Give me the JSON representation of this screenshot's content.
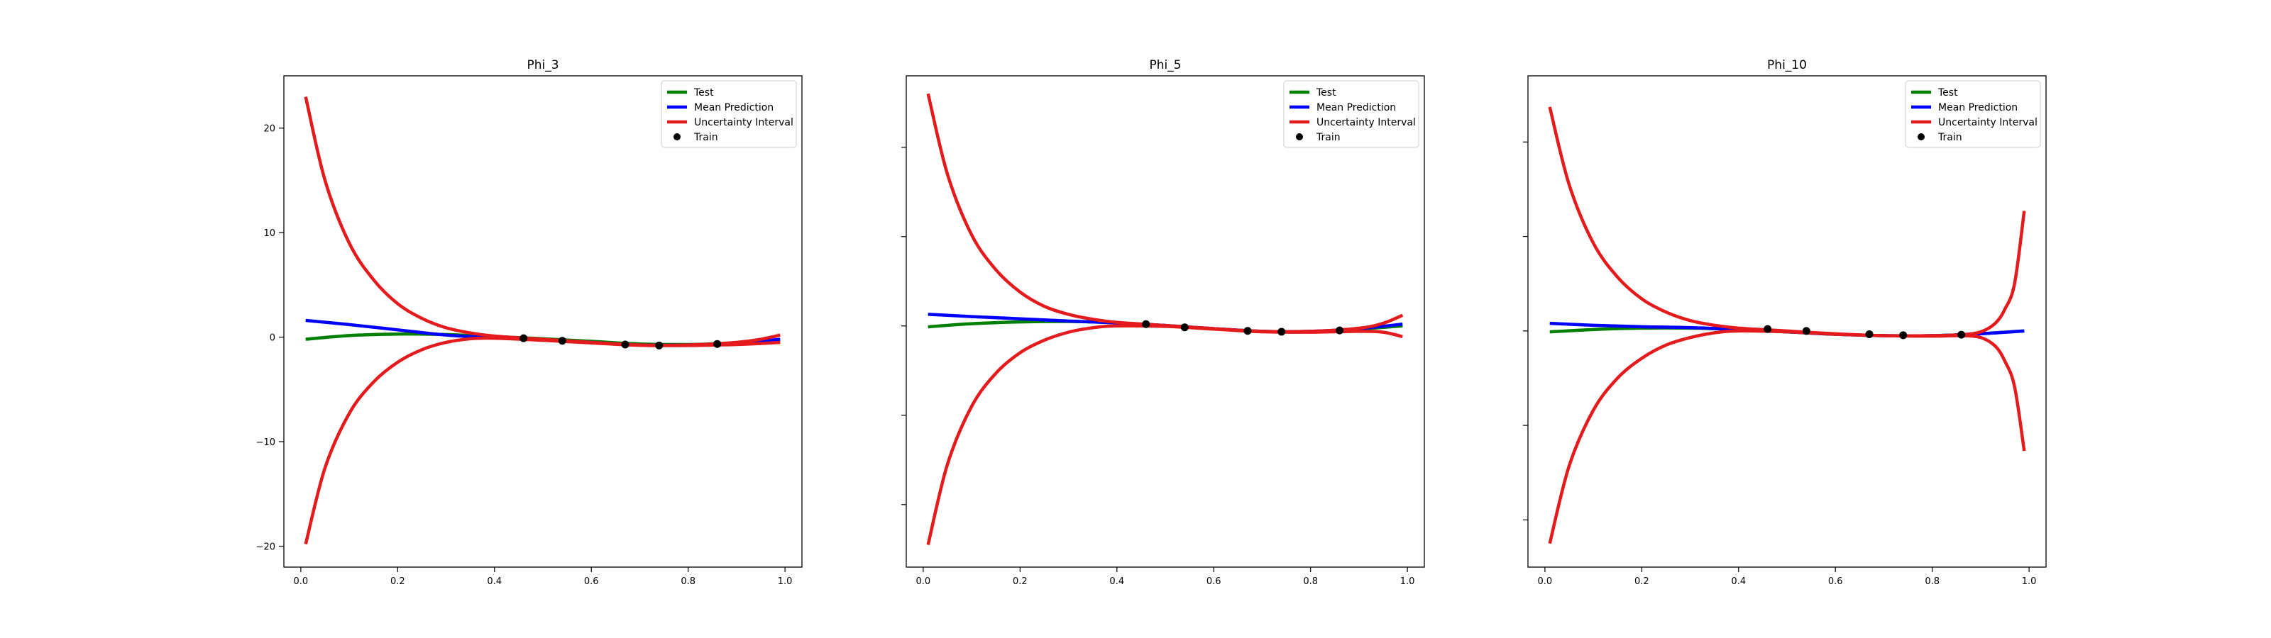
{
  "chart_data": [
    {
      "type": "line",
      "title": "Phi_3",
      "xlabel": "",
      "ylabel": "",
      "xlim": [
        -0.035,
        1.035
      ],
      "ylim": [
        -22,
        25
      ],
      "x_ticks": [
        0.0,
        0.2,
        0.4,
        0.6,
        0.8,
        1.0
      ],
      "x_tick_labels": [
        "0.0",
        "0.2",
        "0.4",
        "0.6",
        "0.8",
        "1.0"
      ],
      "y_ticks": [
        -20,
        -10,
        0,
        10,
        20
      ],
      "y_tick_labels": [
        "−20",
        "−10",
        "0",
        "10",
        "20"
      ],
      "legend_position": "top-right",
      "legend": [
        "Test",
        "Mean Prediction",
        "Uncertainty Interval",
        "Train"
      ],
      "series": [
        {
          "name": "Test",
          "color": "#008000",
          "points": [
            [
              0.01,
              -0.2
            ],
            [
              0.1,
              0.15
            ],
            [
              0.2,
              0.3
            ],
            [
              0.3,
              0.25
            ],
            [
              0.4,
              0.05
            ],
            [
              0.5,
              -0.15
            ],
            [
              0.6,
              -0.4
            ],
            [
              0.7,
              -0.65
            ],
            [
              0.8,
              -0.7
            ],
            [
              0.9,
              -0.55
            ],
            [
              0.99,
              -0.35
            ]
          ]
        },
        {
          "name": "Mean Prediction",
          "color": "#0000ff",
          "points": [
            [
              0.01,
              1.6
            ],
            [
              0.1,
              1.2
            ],
            [
              0.2,
              0.7
            ],
            [
              0.3,
              0.2
            ],
            [
              0.4,
              -0.05
            ],
            [
              0.5,
              -0.25
            ],
            [
              0.6,
              -0.5
            ],
            [
              0.7,
              -0.75
            ],
            [
              0.8,
              -0.75
            ],
            [
              0.9,
              -0.55
            ],
            [
              0.99,
              -0.2
            ]
          ]
        },
        {
          "name": "Uncertainty Interval",
          "color": "#e41a1c",
          "points": [
            [
              0.01,
              23.0
            ],
            [
              0.05,
              15.0
            ],
            [
              0.1,
              9.0
            ],
            [
              0.15,
              5.5
            ],
            [
              0.2,
              3.2
            ],
            [
              0.25,
              1.8
            ],
            [
              0.3,
              0.9
            ],
            [
              0.35,
              0.4
            ],
            [
              0.4,
              0.1
            ],
            [
              0.5,
              -0.2
            ],
            [
              0.6,
              -0.5
            ],
            [
              0.7,
              -0.75
            ],
            [
              0.8,
              -0.75
            ],
            [
              0.9,
              -0.5
            ],
            [
              0.95,
              -0.2
            ],
            [
              0.99,
              0.2
            ]
          ]
        },
        {
          "name": "Uncertainty Interval",
          "color": "#e41a1c",
          "points": [
            [
              0.01,
              -19.8
            ],
            [
              0.05,
              -12.5
            ],
            [
              0.1,
              -7.3
            ],
            [
              0.15,
              -4.3
            ],
            [
              0.2,
              -2.4
            ],
            [
              0.25,
              -1.2
            ],
            [
              0.3,
              -0.5
            ],
            [
              0.35,
              -0.15
            ],
            [
              0.4,
              -0.1
            ],
            [
              0.5,
              -0.3
            ],
            [
              0.6,
              -0.55
            ],
            [
              0.7,
              -0.78
            ],
            [
              0.8,
              -0.8
            ],
            [
              0.9,
              -0.7
            ],
            [
              0.95,
              -0.6
            ],
            [
              0.99,
              -0.5
            ]
          ]
        }
      ],
      "train": {
        "name": "Train",
        "color": "#000000",
        "points": [
          [
            0.46,
            -0.1
          ],
          [
            0.54,
            -0.35
          ],
          [
            0.67,
            -0.7
          ],
          [
            0.74,
            -0.8
          ],
          [
            0.86,
            -0.65
          ]
        ]
      }
    },
    {
      "type": "line",
      "title": "Phi_5",
      "xlabel": "",
      "ylabel": "",
      "xlim": [
        -0.035,
        1.035
      ],
      "ylim": [
        -27,
        28
      ],
      "x_ticks": [
        0.0,
        0.2,
        0.4,
        0.6,
        0.8,
        1.0
      ],
      "x_tick_labels": [
        "0.0",
        "0.2",
        "0.4",
        "0.6",
        "0.8",
        "1.0"
      ],
      "y_ticks": [
        -20,
        -10,
        0,
        10,
        20
      ],
      "y_tick_labels": [
        "",
        "",
        "",
        "",
        ""
      ],
      "legend_position": "top-right",
      "legend": [
        "Test",
        "Mean Prediction",
        "Uncertainty Interval",
        "Train"
      ],
      "series": [
        {
          "name": "Test",
          "color": "#008000",
          "points": [
            [
              0.01,
              -0.1
            ],
            [
              0.1,
              0.25
            ],
            [
              0.2,
              0.45
            ],
            [
              0.3,
              0.5
            ],
            [
              0.4,
              0.35
            ],
            [
              0.5,
              0.05
            ],
            [
              0.6,
              -0.3
            ],
            [
              0.7,
              -0.6
            ],
            [
              0.8,
              -0.65
            ],
            [
              0.9,
              -0.35
            ],
            [
              0.99,
              0.0
            ]
          ]
        },
        {
          "name": "Mean Prediction",
          "color": "#0000ff",
          "points": [
            [
              0.01,
              1.3
            ],
            [
              0.1,
              1.05
            ],
            [
              0.2,
              0.8
            ],
            [
              0.3,
              0.55
            ],
            [
              0.4,
              0.35
            ],
            [
              0.5,
              0.05
            ],
            [
              0.6,
              -0.3
            ],
            [
              0.7,
              -0.6
            ],
            [
              0.8,
              -0.6
            ],
            [
              0.9,
              -0.3
            ],
            [
              0.99,
              0.2
            ]
          ]
        },
        {
          "name": "Uncertainty Interval",
          "color": "#e41a1c",
          "points": [
            [
              0.01,
              26.0
            ],
            [
              0.05,
              17.0
            ],
            [
              0.1,
              10.2
            ],
            [
              0.15,
              6.3
            ],
            [
              0.2,
              3.8
            ],
            [
              0.25,
              2.2
            ],
            [
              0.3,
              1.3
            ],
            [
              0.35,
              0.75
            ],
            [
              0.4,
              0.4
            ],
            [
              0.5,
              0.05
            ],
            [
              0.6,
              -0.3
            ],
            [
              0.7,
              -0.6
            ],
            [
              0.8,
              -0.6
            ],
            [
              0.9,
              -0.25
            ],
            [
              0.95,
              0.3
            ],
            [
              0.99,
              1.2
            ]
          ]
        },
        {
          "name": "Uncertainty Interval",
          "color": "#e41a1c",
          "points": [
            [
              0.01,
              -24.5
            ],
            [
              0.05,
              -15.5
            ],
            [
              0.1,
              -9.0
            ],
            [
              0.15,
              -5.3
            ],
            [
              0.2,
              -3.0
            ],
            [
              0.25,
              -1.6
            ],
            [
              0.3,
              -0.7
            ],
            [
              0.35,
              -0.2
            ],
            [
              0.4,
              0.0
            ],
            [
              0.5,
              -0.05
            ],
            [
              0.6,
              -0.35
            ],
            [
              0.7,
              -0.65
            ],
            [
              0.8,
              -0.7
            ],
            [
              0.9,
              -0.6
            ],
            [
              0.95,
              -0.7
            ],
            [
              0.99,
              -1.2
            ]
          ]
        }
      ],
      "train": {
        "name": "Train",
        "color": "#000000",
        "points": [
          [
            0.46,
            0.2
          ],
          [
            0.54,
            -0.15
          ],
          [
            0.67,
            -0.55
          ],
          [
            0.74,
            -0.65
          ],
          [
            0.86,
            -0.5
          ]
        ]
      }
    },
    {
      "type": "line",
      "title": "Phi_10",
      "xlabel": "",
      "ylabel": "",
      "xlim": [
        -0.035,
        1.035
      ],
      "ylim": [
        -25,
        27
      ],
      "x_ticks": [
        0.0,
        0.2,
        0.4,
        0.6,
        0.8,
        1.0
      ],
      "x_tick_labels": [
        "0.0",
        "0.2",
        "0.4",
        "0.6",
        "0.8",
        "1.0"
      ],
      "y_ticks": [
        -20,
        -10,
        0,
        10,
        20
      ],
      "y_tick_labels": [
        "",
        "",
        "",
        "",
        ""
      ],
      "legend_position": "top-right",
      "legend": [
        "Test",
        "Mean Prediction",
        "Uncertainty Interval",
        "Train"
      ],
      "series": [
        {
          "name": "Test",
          "color": "#008000",
          "points": [
            [
              0.01,
              -0.1
            ],
            [
              0.1,
              0.15
            ],
            [
              0.2,
              0.3
            ],
            [
              0.3,
              0.3
            ],
            [
              0.4,
              0.15
            ],
            [
              0.5,
              -0.1
            ],
            [
              0.6,
              -0.35
            ],
            [
              0.7,
              -0.5
            ],
            [
              0.8,
              -0.5
            ],
            [
              0.9,
              -0.3
            ],
            [
              0.99,
              0.0
            ]
          ]
        },
        {
          "name": "Mean Prediction",
          "color": "#0000ff",
          "points": [
            [
              0.01,
              0.8
            ],
            [
              0.1,
              0.6
            ],
            [
              0.2,
              0.45
            ],
            [
              0.3,
              0.35
            ],
            [
              0.4,
              0.15
            ],
            [
              0.5,
              -0.1
            ],
            [
              0.6,
              -0.35
            ],
            [
              0.7,
              -0.5
            ],
            [
              0.8,
              -0.5
            ],
            [
              0.9,
              -0.3
            ],
            [
              0.99,
              0.0
            ]
          ]
        },
        {
          "name": "Uncertainty Interval",
          "color": "#e41a1c",
          "points": [
            [
              0.01,
              23.7
            ],
            [
              0.05,
              15.5
            ],
            [
              0.1,
              9.3
            ],
            [
              0.15,
              5.7
            ],
            [
              0.2,
              3.4
            ],
            [
              0.25,
              2.0
            ],
            [
              0.3,
              1.1
            ],
            [
              0.35,
              0.6
            ],
            [
              0.4,
              0.3
            ],
            [
              0.5,
              0.0
            ],
            [
              0.6,
              -0.3
            ],
            [
              0.7,
              -0.5
            ],
            [
              0.8,
              -0.5
            ],
            [
              0.86,
              -0.4
            ],
            [
              0.9,
              -0.1
            ],
            [
              0.93,
              0.8
            ],
            [
              0.95,
              2.3
            ],
            [
              0.97,
              5.0
            ],
            [
              0.99,
              12.7
            ]
          ]
        },
        {
          "name": "Uncertainty Interval",
          "color": "#e41a1c",
          "points": [
            [
              0.01,
              -22.5
            ],
            [
              0.05,
              -14.3
            ],
            [
              0.1,
              -8.4
            ],
            [
              0.15,
              -5.0
            ],
            [
              0.2,
              -2.9
            ],
            [
              0.25,
              -1.5
            ],
            [
              0.3,
              -0.7
            ],
            [
              0.35,
              -0.2
            ],
            [
              0.4,
              0.0
            ],
            [
              0.5,
              -0.1
            ],
            [
              0.6,
              -0.35
            ],
            [
              0.7,
              -0.5
            ],
            [
              0.8,
              -0.55
            ],
            [
              0.86,
              -0.5
            ],
            [
              0.9,
              -0.7
            ],
            [
              0.93,
              -1.6
            ],
            [
              0.95,
              -3.2
            ],
            [
              0.97,
              -5.9
            ],
            [
              0.99,
              -12.7
            ]
          ]
        }
      ],
      "train": {
        "name": "Train",
        "color": "#000000",
        "points": [
          [
            0.46,
            0.2
          ],
          [
            0.54,
            0.0
          ],
          [
            0.67,
            -0.35
          ],
          [
            0.74,
            -0.45
          ],
          [
            0.86,
            -0.4
          ]
        ]
      }
    }
  ]
}
